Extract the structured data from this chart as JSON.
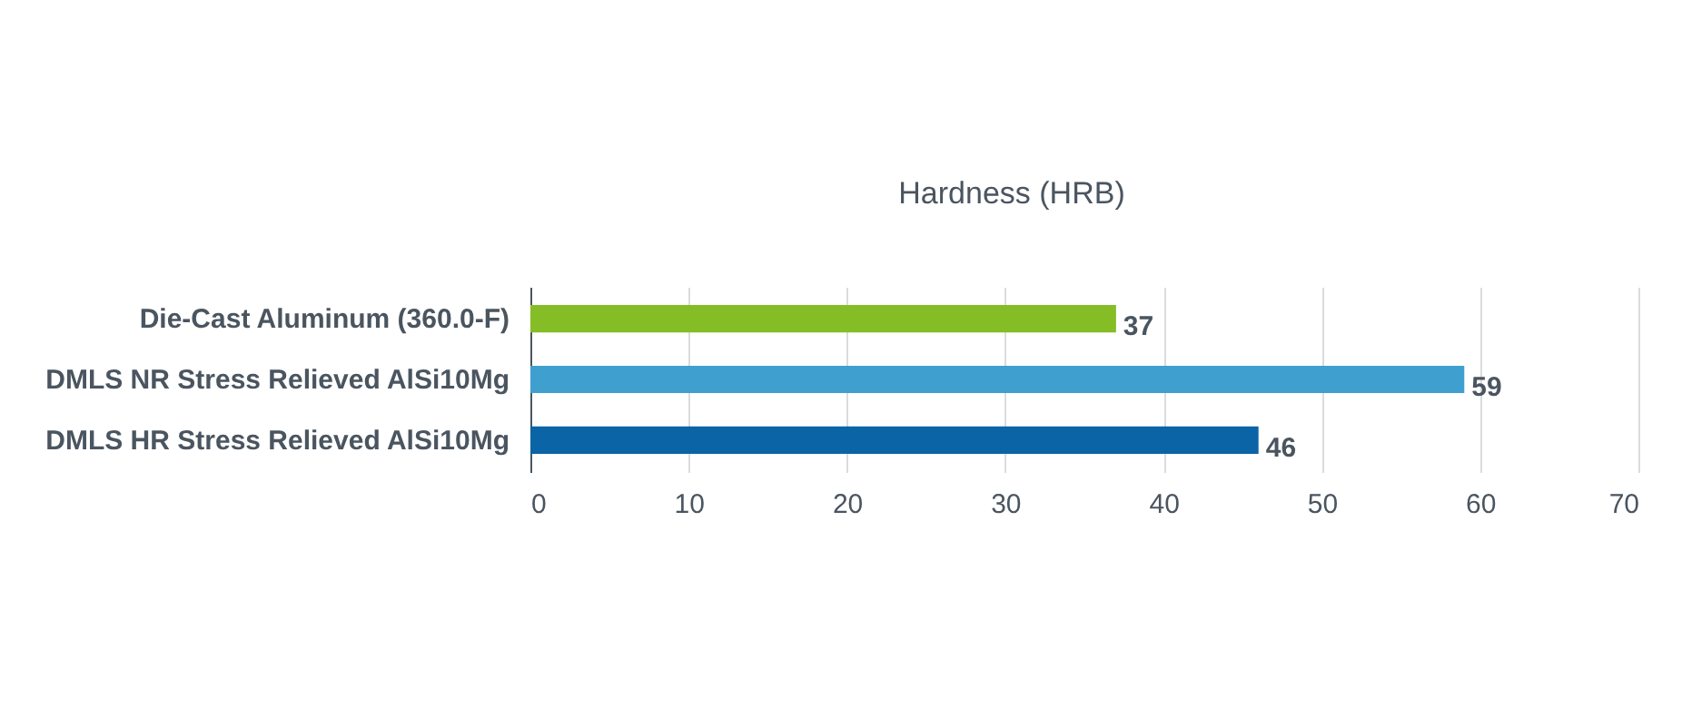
{
  "chart_data": {
    "type": "bar",
    "orientation": "horizontal",
    "title": "Hardness (HRB)",
    "categories": [
      "Die-Cast Aluminum (360.0-F)",
      "DMLS NR Stress Relieved AlSi10Mg",
      "DMLS HR Stress Relieved AlSi10Mg"
    ],
    "values": [
      37,
      59,
      46
    ],
    "colors": [
      "#84bd26",
      "#3f9fcf",
      "#0a64a5"
    ],
    "xlim": [
      0,
      70
    ],
    "xticks": [
      0,
      10,
      20,
      30,
      40,
      50,
      60,
      70
    ],
    "grid": "x",
    "data_labels": true,
    "legend": false
  }
}
